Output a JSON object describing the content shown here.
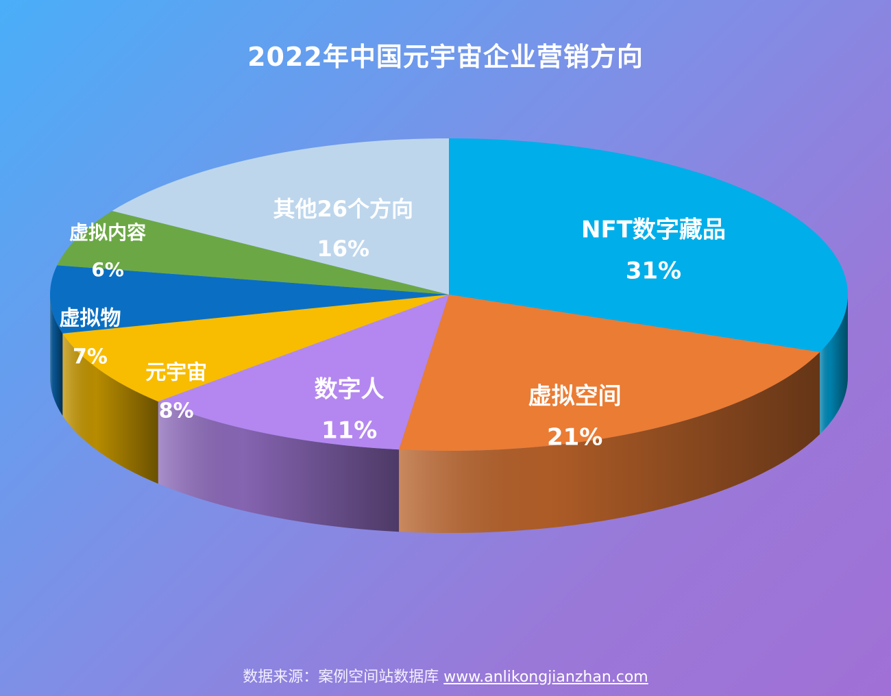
{
  "chart_data": {
    "type": "pie",
    "title": "2022年中国元宇宙企业营销方向",
    "slices": [
      {
        "label": "NFT数字藏品",
        "value": 31,
        "value_label": "31%",
        "color": "#00aeea"
      },
      {
        "label": "虚拟空间",
        "value": 21,
        "value_label": "21%",
        "color": "#ea7c34"
      },
      {
        "label": "数字人",
        "value": 11,
        "value_label": "11%",
        "color": "#b387ef"
      },
      {
        "label": "元宇宙",
        "value": 8,
        "value_label": "8%",
        "color": "#f8bc00"
      },
      {
        "label": "虚拟物",
        "value": 7,
        "value_label": "7%",
        "color": "#0a6fc2"
      },
      {
        "label": "虚拟内容",
        "value": 6,
        "value_label": "6%",
        "color": "#6ba845"
      },
      {
        "label": "其他26个方向",
        "value": 16,
        "value_label": "16%",
        "color": "#bdd6ec"
      }
    ]
  },
  "footer": {
    "source_text": "数据来源：案例空间站数据库",
    "source_link": "www.anlikongjianzhan.com"
  }
}
